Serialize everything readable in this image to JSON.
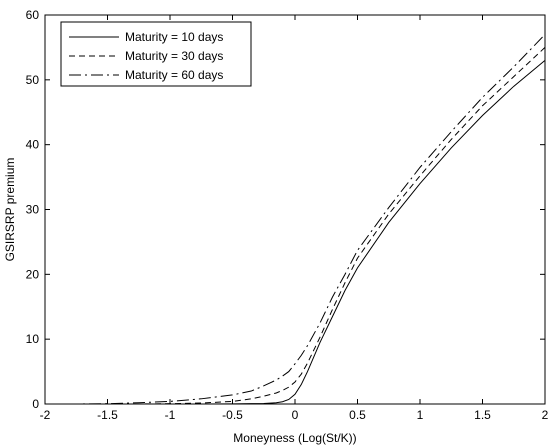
{
  "chart_data": {
    "type": "line",
    "title": "",
    "xlabel": "Moneyness (Log(St/K))",
    "ylabel": "GSIRSRP premium",
    "xlim": [
      -2,
      2
    ],
    "ylim": [
      0,
      60
    ],
    "xticks": [
      "-2",
      "-1.5",
      "-1",
      "-0.5",
      "0",
      "0.5",
      "1",
      "1.5",
      "2"
    ],
    "yticks": [
      "0",
      "10",
      "20",
      "30",
      "40",
      "50",
      "60"
    ],
    "grid": false,
    "legend_position": "top-left",
    "x": [
      -2.0,
      -1.75,
      -1.5,
      -1.25,
      -1.0,
      -0.75,
      -0.5,
      -0.35,
      -0.25,
      -0.15,
      -0.1,
      -0.05,
      0.0,
      0.05,
      0.1,
      0.2,
      0.3,
      0.4,
      0.5,
      0.75,
      1.0,
      1.25,
      1.5,
      1.75,
      2.0
    ],
    "series": [
      {
        "name": "Maturity = 10 days",
        "dash": "solid",
        "values": [
          0.0,
          0.0,
          0.0,
          0.0,
          0.0,
          0.0,
          0.02,
          0.05,
          0.08,
          0.2,
          0.35,
          0.7,
          1.5,
          3.0,
          5.0,
          9.5,
          13.5,
          17.5,
          21.0,
          28.0,
          34.0,
          39.5,
          44.5,
          49.0,
          53.0
        ]
      },
      {
        "name": "Maturity = 30 days",
        "dash": "dashed",
        "values": [
          0.0,
          0.0,
          0.0,
          0.0,
          0.05,
          0.15,
          0.4,
          0.8,
          1.2,
          1.7,
          2.1,
          2.6,
          3.4,
          4.6,
          6.3,
          10.3,
          14.6,
          18.7,
          22.5,
          29.3,
          35.2,
          40.8,
          46.0,
          50.5,
          55.0
        ]
      },
      {
        "name": "Maturity = 60 days",
        "dash": "dashdot",
        "values": [
          0.0,
          0.0,
          0.05,
          0.2,
          0.4,
          0.8,
          1.4,
          2.0,
          2.8,
          3.7,
          4.3,
          5.0,
          6.2,
          7.5,
          9.0,
          12.5,
          16.5,
          20.0,
          23.7,
          30.3,
          36.5,
          42.0,
          47.3,
          52.0,
          57.0
        ]
      }
    ]
  }
}
